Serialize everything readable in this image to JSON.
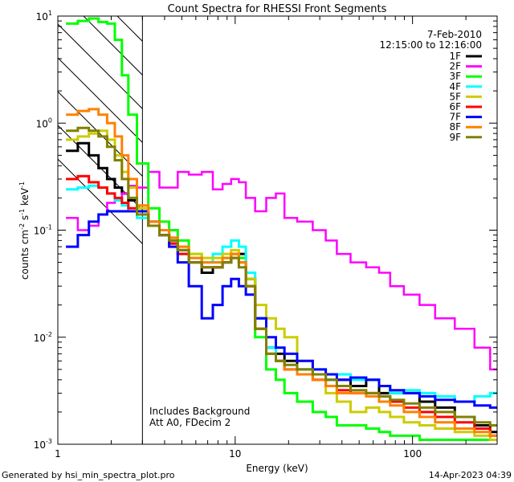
{
  "chart_data": {
    "type": "line",
    "title": "Count Spectra for RHESSI Front Segments",
    "xlabel": "Energy (keV)",
    "ylabel": "counts cm-2 s-1 keV-1",
    "ylabel_parts": {
      "base": "counts cm",
      "exp1": "-2",
      "mid1": " s",
      "exp2": "-1",
      "mid2": " keV",
      "exp3": "-1"
    },
    "xscale": "log",
    "yscale": "log",
    "xlim": [
      1,
      300
    ],
    "ylim": [
      0.001,
      10
    ],
    "x_ticks": [
      {
        "value": 1,
        "label": "1"
      },
      {
        "value": 10,
        "label": "10"
      },
      {
        "value": 100,
        "label": "100"
      }
    ],
    "y_ticks": [
      {
        "value": 10,
        "base": "10",
        "exp": "1"
      },
      {
        "value": 1,
        "base": "10",
        "exp": "0"
      },
      {
        "value": 0.1,
        "base": "10",
        "exp": "-1"
      },
      {
        "value": 0.01,
        "base": "10",
        "exp": "-2"
      },
      {
        "value": 0.001,
        "base": "10",
        "exp": "-3"
      }
    ],
    "date": "7-Feb-2010",
    "time_range": "12:15:00 to 12:16:00",
    "annotations": [
      "Includes Background",
      "Att A0, FDecim 2"
    ],
    "shaded_region": {
      "from": 1,
      "to": 3,
      "style": "diagonal-hatch"
    },
    "footer_left": "Generated by hsi_min_spectra_plot.pro",
    "footer_right": "14-Apr-2023 04:39",
    "series": [
      {
        "name": "1F",
        "color": "#000000",
        "x": [
          1.2,
          1.4,
          1.6,
          1.8,
          2.0,
          2.2,
          2.4,
          2.6,
          3.0,
          3.5,
          4,
          4.5,
          5,
          6,
          7,
          8,
          9,
          10,
          11,
          12,
          14,
          16,
          18,
          20,
          25,
          30,
          35,
          40,
          50,
          60,
          70,
          80,
          100,
          120,
          150,
          200,
          250,
          300
        ],
        "values": [
          0.55,
          0.65,
          0.5,
          0.38,
          0.3,
          0.25,
          0.22,
          0.19,
          0.14,
          0.11,
          0.09,
          0.075,
          0.065,
          0.05,
          0.04,
          0.045,
          0.05,
          0.06,
          0.06,
          0.035,
          0.015,
          0.008,
          0.007,
          0.006,
          0.005,
          0.0045,
          0.004,
          0.004,
          0.0035,
          0.004,
          0.003,
          0.003,
          0.003,
          0.0025,
          0.0022,
          0.0018,
          0.0015,
          0.0013
        ]
      },
      {
        "name": "2F",
        "color": "#ff00ff",
        "x": [
          1.2,
          1.4,
          1.6,
          1.8,
          2.0,
          2.2,
          2.4,
          2.6,
          3.0,
          3.5,
          4,
          4.5,
          5,
          6,
          7,
          8,
          9,
          10,
          11,
          12,
          14,
          16,
          18,
          20,
          25,
          30,
          35,
          40,
          50,
          60,
          70,
          80,
          100,
          120,
          150,
          200,
          250,
          300
        ],
        "values": [
          0.13,
          0.1,
          0.11,
          0.14,
          0.18,
          0.2,
          0.22,
          0.26,
          0.25,
          0.35,
          0.25,
          0.25,
          0.35,
          0.33,
          0.35,
          0.24,
          0.27,
          0.3,
          0.28,
          0.2,
          0.15,
          0.2,
          0.22,
          0.13,
          0.12,
          0.1,
          0.08,
          0.06,
          0.05,
          0.045,
          0.04,
          0.03,
          0.025,
          0.02,
          0.015,
          0.012,
          0.008,
          0.005
        ]
      },
      {
        "name": "3F",
        "color": "#00ff00",
        "x": [
          1.2,
          1.4,
          1.6,
          1.8,
          2.0,
          2.2,
          2.4,
          2.6,
          3.0,
          3.5,
          4,
          4.5,
          5,
          6,
          7,
          8,
          9,
          10,
          11,
          12,
          14,
          16,
          18,
          20,
          25,
          30,
          35,
          40,
          50,
          60,
          70,
          80,
          100,
          120,
          150,
          200,
          250,
          300
        ],
        "values": [
          8.5,
          9.0,
          9.5,
          8.8,
          8.5,
          6.0,
          2.8,
          1.2,
          0.42,
          0.16,
          0.12,
          0.1,
          0.08,
          0.06,
          0.05,
          0.05,
          0.055,
          0.06,
          0.055,
          0.03,
          0.01,
          0.005,
          0.004,
          0.003,
          0.0025,
          0.002,
          0.0018,
          0.0015,
          0.0015,
          0.0014,
          0.0013,
          0.0012,
          0.0012,
          0.0011,
          0.0011,
          0.0011,
          0.0011,
          0.0011
        ]
      },
      {
        "name": "4F",
        "color": "#00ffff",
        "x": [
          1.2,
          1.4,
          1.6,
          1.8,
          2.0,
          2.2,
          2.4,
          2.6,
          3.0,
          3.5,
          4,
          4.5,
          5,
          6,
          7,
          8,
          9,
          10,
          11,
          12,
          14,
          16,
          18,
          20,
          25,
          30,
          35,
          40,
          50,
          60,
          70,
          80,
          100,
          120,
          150,
          200,
          250,
          300
        ],
        "values": [
          0.24,
          0.25,
          0.26,
          0.25,
          0.22,
          0.19,
          0.17,
          0.15,
          0.13,
          0.11,
          0.09,
          0.08,
          0.06,
          0.055,
          0.05,
          0.06,
          0.07,
          0.08,
          0.07,
          0.04,
          0.015,
          0.008,
          0.006,
          0.005,
          0.005,
          0.005,
          0.004,
          0.0045,
          0.004,
          0.004,
          0.0035,
          0.003,
          0.0032,
          0.003,
          0.0028,
          0.0025,
          0.0028,
          0.003
        ]
      },
      {
        "name": "5F",
        "color": "#cccc00",
        "x": [
          1.2,
          1.4,
          1.6,
          1.8,
          2.0,
          2.2,
          2.4,
          2.6,
          3.0,
          3.5,
          4,
          4.5,
          5,
          6,
          7,
          8,
          9,
          10,
          11,
          12,
          14,
          16,
          18,
          20,
          25,
          30,
          35,
          40,
          50,
          60,
          70,
          80,
          100,
          120,
          150,
          200,
          250,
          300
        ],
        "values": [
          0.7,
          0.75,
          0.8,
          0.85,
          0.7,
          0.5,
          0.35,
          0.25,
          0.16,
          0.12,
          0.1,
          0.085,
          0.07,
          0.06,
          0.055,
          0.055,
          0.06,
          0.065,
          0.05,
          0.035,
          0.02,
          0.015,
          0.012,
          0.01,
          0.006,
          0.004,
          0.003,
          0.0025,
          0.002,
          0.0022,
          0.002,
          0.0018,
          0.0016,
          0.0015,
          0.0014,
          0.0013,
          0.0012,
          0.0011
        ]
      },
      {
        "name": "6F",
        "color": "#ff0000",
        "x": [
          1.2,
          1.4,
          1.6,
          1.8,
          2.0,
          2.2,
          2.4,
          2.6,
          3.0,
          3.5,
          4,
          4.5,
          5,
          6,
          7,
          8,
          9,
          10,
          11,
          12,
          14,
          16,
          18,
          20,
          25,
          30,
          35,
          40,
          50,
          60,
          70,
          80,
          100,
          120,
          150,
          200,
          250,
          300
        ],
        "values": [
          0.3,
          0.32,
          0.28,
          0.25,
          0.22,
          0.2,
          0.18,
          0.16,
          0.14,
          0.11,
          0.09,
          0.075,
          0.06,
          0.05,
          0.045,
          0.045,
          0.05,
          0.055,
          0.05,
          0.03,
          0.012,
          0.007,
          0.006,
          0.005,
          0.0045,
          0.004,
          0.0035,
          0.0032,
          0.003,
          0.003,
          0.0028,
          0.0025,
          0.0022,
          0.002,
          0.0018,
          0.0016,
          0.0014,
          0.0012
        ]
      },
      {
        "name": "7F",
        "color": "#0000ff",
        "x": [
          1.2,
          1.4,
          1.6,
          1.8,
          2.0,
          2.2,
          2.4,
          2.6,
          3.0,
          3.5,
          4,
          4.5,
          5,
          6,
          7,
          8,
          9,
          10,
          11,
          12,
          14,
          16,
          18,
          20,
          25,
          30,
          35,
          40,
          50,
          60,
          70,
          80,
          100,
          120,
          150,
          200,
          250,
          300
        ],
        "values": [
          0.07,
          0.09,
          0.12,
          0.14,
          0.15,
          0.15,
          0.15,
          0.15,
          0.15,
          0.12,
          0.09,
          0.07,
          0.05,
          0.03,
          0.015,
          0.02,
          0.03,
          0.035,
          0.03,
          0.025,
          0.015,
          0.01,
          0.008,
          0.007,
          0.006,
          0.005,
          0.0045,
          0.004,
          0.0042,
          0.004,
          0.0035,
          0.0032,
          0.003,
          0.0028,
          0.0026,
          0.0025,
          0.0023,
          0.0022
        ]
      },
      {
        "name": "8F",
        "color": "#ff8000",
        "x": [
          1.2,
          1.4,
          1.6,
          1.8,
          2.0,
          2.2,
          2.4,
          2.6,
          3.0,
          3.5,
          4,
          4.5,
          5,
          6,
          7,
          8,
          9,
          10,
          11,
          12,
          14,
          16,
          18,
          20,
          25,
          30,
          35,
          40,
          50,
          60,
          70,
          80,
          100,
          120,
          150,
          200,
          250,
          300
        ],
        "values": [
          1.2,
          1.3,
          1.35,
          1.2,
          1.0,
          0.75,
          0.5,
          0.3,
          0.17,
          0.12,
          0.1,
          0.085,
          0.07,
          0.055,
          0.05,
          0.05,
          0.055,
          0.06,
          0.05,
          0.03,
          0.012,
          0.007,
          0.006,
          0.005,
          0.0045,
          0.004,
          0.0035,
          0.003,
          0.003,
          0.0028,
          0.0025,
          0.0023,
          0.002,
          0.0018,
          0.0016,
          0.0014,
          0.0013,
          0.0012
        ]
      },
      {
        "name": "9F",
        "color": "#808000",
        "x": [
          1.2,
          1.4,
          1.6,
          1.8,
          2.0,
          2.2,
          2.4,
          2.6,
          3.0,
          3.5,
          4,
          4.5,
          5,
          6,
          7,
          8,
          9,
          10,
          11,
          12,
          14,
          16,
          18,
          20,
          25,
          30,
          35,
          40,
          50,
          60,
          70,
          80,
          100,
          120,
          150,
          200,
          250,
          300
        ],
        "values": [
          0.85,
          0.9,
          0.85,
          0.75,
          0.6,
          0.45,
          0.3,
          0.2,
          0.14,
          0.11,
          0.09,
          0.08,
          0.065,
          0.05,
          0.045,
          0.045,
          0.05,
          0.055,
          0.045,
          0.03,
          0.012,
          0.007,
          0.006,
          0.0055,
          0.005,
          0.0045,
          0.004,
          0.0035,
          0.0032,
          0.003,
          0.0028,
          0.0026,
          0.0024,
          0.0022,
          0.002,
          0.0018,
          0.0016,
          0.0015
        ]
      }
    ]
  }
}
